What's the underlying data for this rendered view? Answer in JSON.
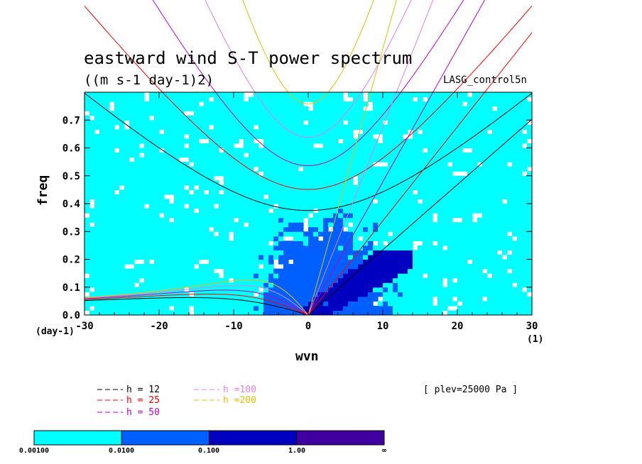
{
  "chart_data": {
    "type": "heatmap",
    "title": "eastward wind S-T power spectrum",
    "units": "((m s-1 day-1)2)",
    "run_label": "LASG_control5n",
    "xlabel": "wvn",
    "ylabel": "freq",
    "x_units_left": "(day-1)",
    "x_units_right": "(1)",
    "xlim": [
      -30,
      30
    ],
    "ylim": [
      0.0,
      0.8
    ],
    "x_ticks": [
      "-30",
      "-20",
      "-10",
      "0",
      "10",
      "20",
      "30"
    ],
    "y_ticks": [
      "0.0",
      "0.1",
      "0.2",
      "0.3",
      "0.4",
      "0.5",
      "0.6",
      "0.7"
    ],
    "annotation": "[ plev=25000 Pa ]",
    "colorbar": {
      "levels": [
        "0.00100",
        "0.0100",
        "0.100",
        "1.00",
        "∞"
      ],
      "colors": [
        "#00ffff",
        "#0060ff",
        "#0000c0",
        "#4000a0"
      ]
    },
    "shaded_regions": [
      {
        "level": "0.00100",
        "description": "background power over most of domain"
      },
      {
        "level": "0.0100",
        "description": "central band around wvn -10 to 15, freq 0-0.5"
      },
      {
        "level": "0.100",
        "description": "Kelvin-wave ridge wvn 0-12, freq 0-0.2"
      }
    ],
    "dispersion_curves": [
      {
        "name": "h = 12",
        "color": "#000000",
        "equivalent_depth_m": 12
      },
      {
        "name": "h = 25",
        "color": "#ff0000",
        "equivalent_depth_m": 25
      },
      {
        "name": "h = 50",
        "color": "#c000c0",
        "equivalent_depth_m": 50
      },
      {
        "name": "h =100",
        "color": "#e080e0",
        "equivalent_depth_m": 100
      },
      {
        "name": "h =200",
        "color": "#e0c000",
        "equivalent_depth_m": 200
      }
    ]
  }
}
